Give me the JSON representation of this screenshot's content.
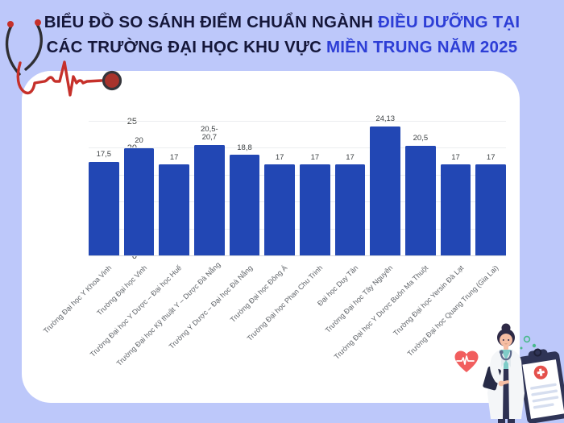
{
  "background_color": "#bdc8fa",
  "card_color": "#ffffff",
  "title": {
    "line1_dark": "BIỂU ĐỒ SO SÁNH ĐIỂM CHUẨN NGÀNH ",
    "line1_blue": "ĐIỀU DƯỠNG TẠI",
    "line2_dark": "CÁC TRƯỜNG ĐẠI HỌC KHU VỰC ",
    "line2_blue": "MIỀN TRUNG NĂM 2025",
    "dark_color": "#15173a",
    "blue_color": "#2d3ed6"
  },
  "chart_data": {
    "type": "bar",
    "categories": [
      "Trường Đại học Y Khoa Vinh",
      "Trường Đại học Vinh",
      "Trường Đại học Y Dược – Đại học Huế",
      "Trường Đại học Kỹ thuật Y – Dược Đà Nẵng",
      "Trường Y Dược – Đại học Đà Nẵng",
      "Trường Đại học Đông Á",
      "Trường Đại học Phan Chu Trinh",
      "Đại học Duy Tân",
      "Trường Đại học Tây Nguyên",
      "Trường Đại học Y Dược Buôn Ma Thuột",
      "Trường Đại học Yersin Đà Lạt",
      "Trường Đại học Quang Trung (Gia Lai)"
    ],
    "values": [
      17.5,
      20,
      17,
      20.6,
      18.8,
      17,
      17,
      17,
      24.13,
      20.5,
      17,
      17
    ],
    "value_labels": [
      "17,5",
      "20",
      "17",
      "20,5-\n20,7",
      "18,8",
      "17",
      "17",
      "17",
      "24,13",
      "20,5",
      "17",
      "17"
    ],
    "title": "",
    "xlabel": "",
    "ylabel": "",
    "ylim": [
      0,
      25
    ],
    "yticks": [
      0,
      5,
      10,
      15,
      20,
      25
    ],
    "bar_color": "#2247b4",
    "grid": true,
    "legend": "none"
  },
  "decorations": {
    "top_left_icon": "stethoscope-heartbeat-icon",
    "bottom_right_icons": [
      "heart-ecg-icon",
      "doctor-illustration",
      "medical-clipboard-icon"
    ],
    "ecg_red": "#c6302a",
    "heart_red": "#f15e5e",
    "clipboard_navy": "#2f3456",
    "badge_red": "#e4504b",
    "shirt_teal": "#7fccc8",
    "dot_green": "#49b98c"
  }
}
